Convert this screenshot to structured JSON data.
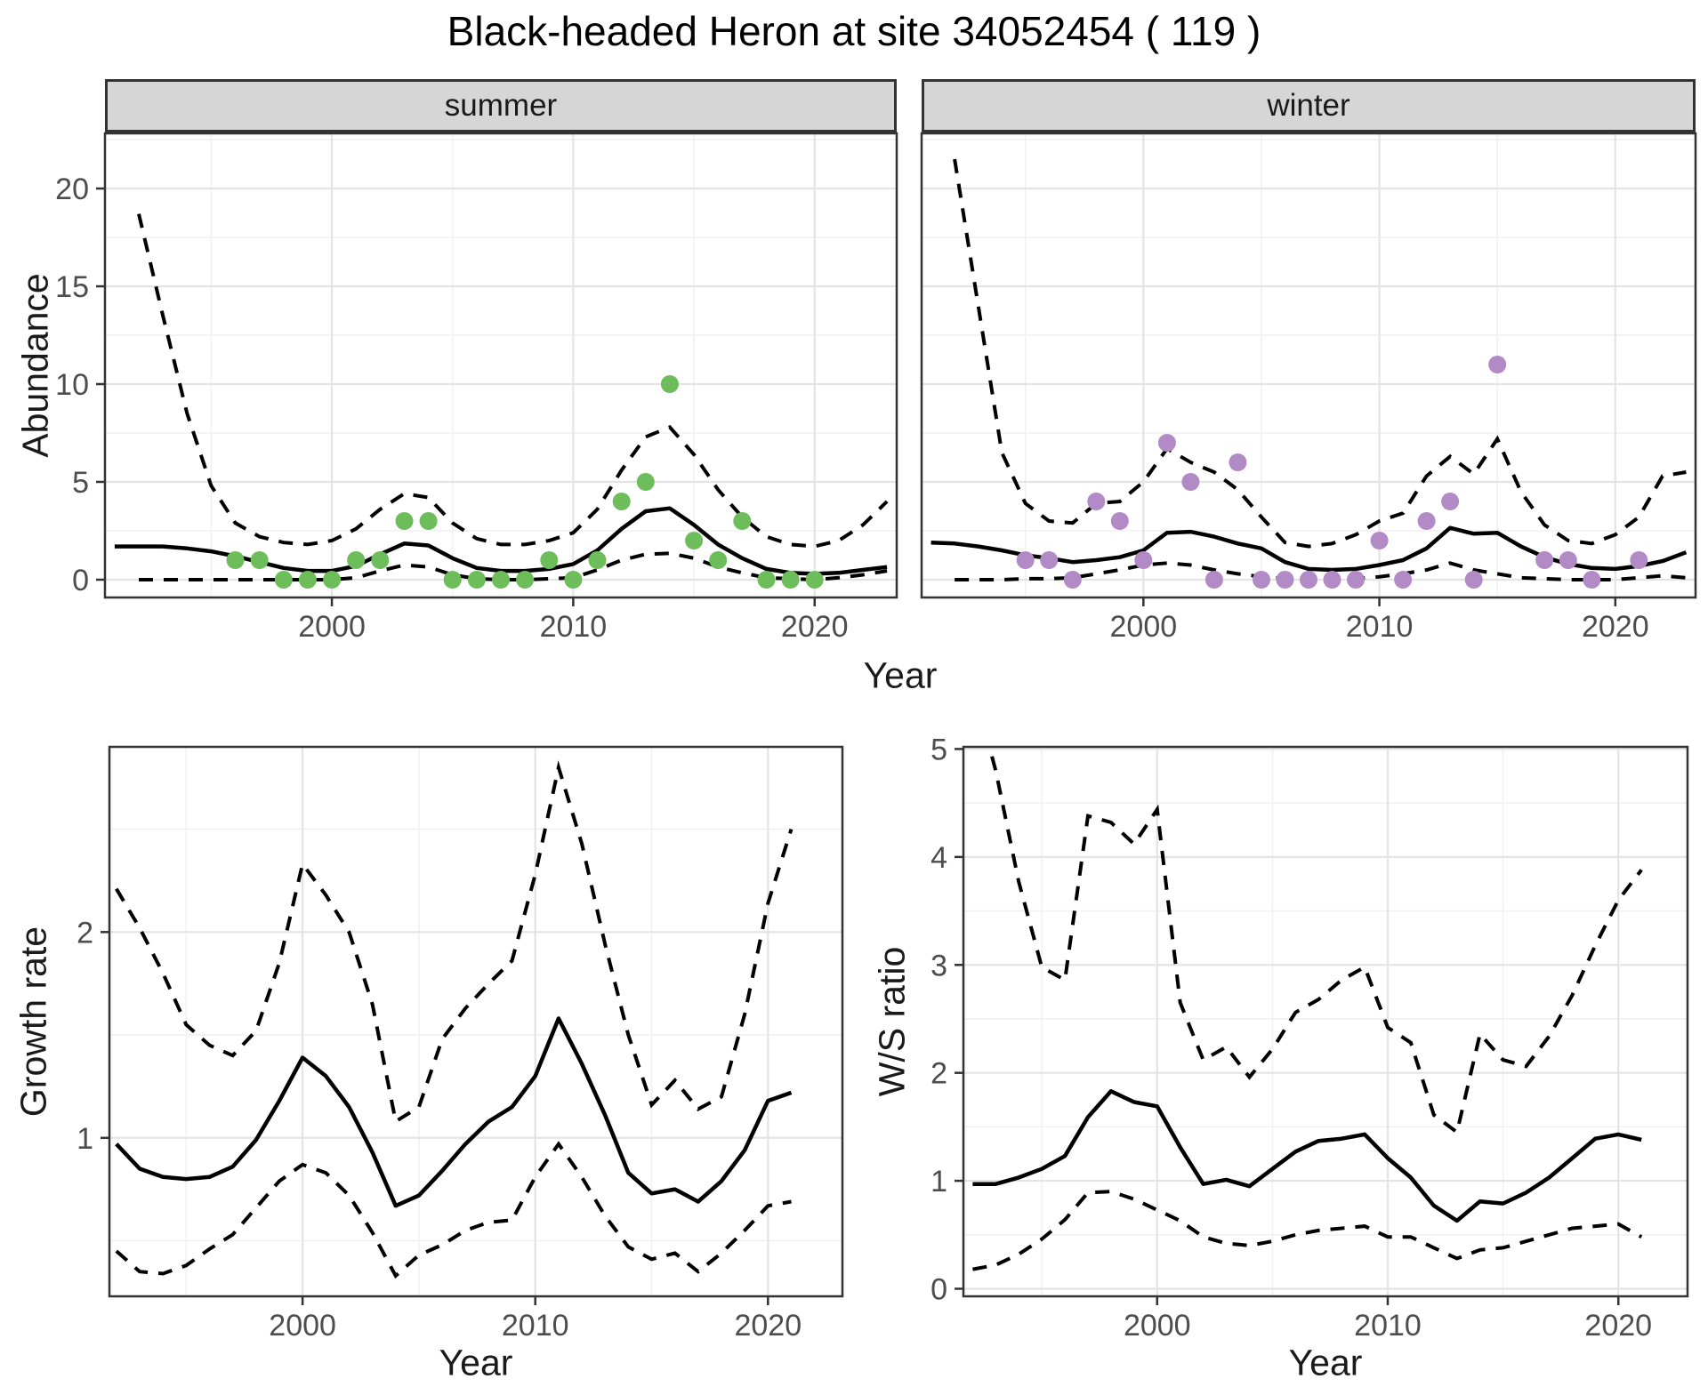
{
  "title": "Black-headed Heron at site 34052454 ( 119 )",
  "facets": {
    "summer": "summer",
    "winter": "winter"
  },
  "axis_labels": {
    "abundance_y": "Abundance",
    "top_x": "Year",
    "growth_y": "Growth rate",
    "growth_x": "Year",
    "ws_y": "W/S ratio",
    "ws_x": "Year"
  },
  "colors": {
    "summer_point": "#6DBE5B",
    "winter_point": "#B28AC6",
    "line": "#000000",
    "grid_major": "#E4E4E4",
    "grid_minor": "#F1F1F1",
    "strip_bg": "#D6D6D6",
    "panel_border": "#333333",
    "tick_label": "#4D4D4D",
    "axis_title": "#1A1A1A"
  },
  "chart_data": [
    {
      "id": "abundance_summer",
      "type": "line",
      "facet": "summer",
      "title": "",
      "xlabel": "Year",
      "ylabel": "Abundance",
      "x_ticks": [
        2000,
        2010,
        2020
      ],
      "x_minor": [
        1995,
        2005,
        2015
      ],
      "y_ticks": [
        0,
        5,
        10,
        15,
        20
      ],
      "y_minor": [
        2.5,
        7.5,
        12.5,
        17.5,
        22.5
      ],
      "xlim": [
        1990.6,
        2023.4
      ],
      "ylim": [
        -0.91,
        22.82
      ],
      "line_years": [
        1991,
        1992,
        1993,
        1994,
        1995,
        1996,
        1997,
        1998,
        1999,
        2000,
        2001,
        2002,
        2003,
        2004,
        2005,
        2006,
        2007,
        2008,
        2009,
        2010,
        2011,
        2012,
        2013,
        2014,
        2015,
        2016,
        2017,
        2018,
        2019,
        2020,
        2021,
        2022,
        2023
      ],
      "mean": [
        1.7,
        1.7,
        1.7,
        1.6,
        1.45,
        1.2,
        0.9,
        0.6,
        0.45,
        0.45,
        0.7,
        1.3,
        1.85,
        1.75,
        1.1,
        0.6,
        0.45,
        0.45,
        0.55,
        0.8,
        1.5,
        2.6,
        3.5,
        3.65,
        2.8,
        1.8,
        1.1,
        0.55,
        0.35,
        0.3,
        0.35,
        0.5,
        0.65
      ],
      "ci_upper": [
        null,
        18.7,
        13.5,
        8.5,
        4.8,
        2.9,
        2.2,
        1.9,
        1.8,
        2.0,
        2.6,
        3.6,
        4.4,
        4.2,
        2.9,
        2.1,
        1.8,
        1.8,
        2.0,
        2.4,
        3.6,
        5.6,
        7.3,
        7.8,
        6.4,
        4.6,
        3.2,
        2.2,
        1.8,
        1.7,
        2.0,
        2.8,
        4.0
      ],
      "ci_lower": [
        null,
        0,
        0,
        0,
        0,
        0,
        0,
        0,
        0,
        0,
        0.1,
        0.45,
        0.75,
        0.65,
        0.25,
        0.05,
        0,
        0,
        0.05,
        0.1,
        0.5,
        1.0,
        1.3,
        1.35,
        1.1,
        0.65,
        0.35,
        0.1,
        0.05,
        0,
        0.1,
        0.25,
        0.45
      ],
      "points_years": [
        1996,
        1997,
        1998,
        1999,
        2000,
        2001,
        2002,
        2003,
        2004,
        2005,
        2006,
        2007,
        2008,
        2009,
        2010,
        2011,
        2012,
        2013,
        2014,
        2015,
        2016,
        2017,
        2018,
        2019,
        2020
      ],
      "points_values": [
        1,
        1,
        0,
        0,
        0,
        1,
        1,
        3,
        3,
        0,
        0,
        0,
        0,
        1,
        0,
        1,
        4,
        5,
        10,
        2,
        1,
        3,
        0,
        0,
        0
      ]
    },
    {
      "id": "abundance_winter",
      "type": "line",
      "facet": "winter",
      "title": "",
      "xlabel": "Year",
      "ylabel": "Abundance",
      "x_ticks": [
        2000,
        2010,
        2020
      ],
      "x_minor": [
        1995,
        2005,
        2015
      ],
      "y_ticks": [
        0,
        5,
        10,
        15,
        20
      ],
      "y_minor": [
        2.5,
        7.5,
        12.5,
        17.5,
        22.5
      ],
      "xlim": [
        1990.6,
        2023.4
      ],
      "ylim": [
        -0.91,
        22.82
      ],
      "line_years": [
        1991,
        1992,
        1993,
        1994,
        1995,
        1996,
        1997,
        1998,
        1999,
        2000,
        2001,
        2002,
        2003,
        2004,
        2005,
        2006,
        2007,
        2008,
        2009,
        2010,
        2011,
        2012,
        2013,
        2014,
        2015,
        2016,
        2017,
        2018,
        2019,
        2020,
        2021,
        2022,
        2023
      ],
      "mean": [
        1.9,
        1.85,
        1.7,
        1.5,
        1.25,
        1.1,
        0.9,
        1.0,
        1.15,
        1.5,
        2.4,
        2.45,
        2.2,
        1.85,
        1.6,
        0.9,
        0.55,
        0.5,
        0.55,
        0.75,
        1.0,
        1.6,
        2.65,
        2.35,
        2.4,
        1.7,
        1.15,
        0.8,
        0.6,
        0.55,
        0.7,
        0.95,
        1.4
      ],
      "ci_upper": [
        null,
        21.5,
        14.0,
        6.5,
        3.9,
        3.0,
        2.9,
        3.9,
        4.0,
        5.0,
        6.7,
        6.0,
        5.5,
        4.6,
        3.2,
        1.9,
        1.7,
        1.85,
        2.3,
        3.0,
        3.4,
        5.3,
        6.3,
        5.4,
        7.2,
        4.5,
        2.8,
        2.0,
        1.85,
        2.3,
        3.2,
        5.3,
        5.5
      ],
      "ci_lower": [
        null,
        0,
        0,
        0,
        0.05,
        0.05,
        0.1,
        0.3,
        0.5,
        0.75,
        0.85,
        0.75,
        0.5,
        0.3,
        0.15,
        0.05,
        0,
        0,
        0.05,
        0.15,
        0.3,
        0.5,
        0.85,
        0.5,
        0.3,
        0.1,
        0.05,
        0,
        0,
        0,
        0.1,
        0.2,
        0.1
      ],
      "points_years": [
        1995,
        1996,
        1997,
        1998,
        1999,
        2000,
        2001,
        2002,
        2003,
        2004,
        2005,
        2006,
        2007,
        2008,
        2009,
        2010,
        2011,
        2012,
        2013,
        2014,
        2015,
        2017,
        2018,
        2019,
        2021
      ],
      "points_values": [
        1,
        1,
        0,
        4,
        3,
        1,
        7,
        5,
        0,
        6,
        0,
        0,
        0,
        0,
        0,
        2,
        0,
        3,
        4,
        0,
        11,
        1,
        1,
        0,
        1
      ]
    },
    {
      "id": "growth_rate",
      "type": "line",
      "facet": "",
      "title": "",
      "xlabel": "Year",
      "ylabel": "Growth rate",
      "x_ticks": [
        2000,
        2010,
        2020
      ],
      "x_minor": [
        1995,
        2005,
        2015
      ],
      "y_ticks": [
        1,
        2
      ],
      "y_minor": [
        0.5,
        1.5,
        2.5
      ],
      "xlim": [
        1991.7,
        2023.2
      ],
      "ylim": [
        0.23,
        2.9
      ],
      "line_years": [
        1992,
        1993,
        1994,
        1995,
        1996,
        1997,
        1998,
        1999,
        2000,
        2001,
        2002,
        2003,
        2004,
        2005,
        2006,
        2007,
        2008,
        2009,
        2010,
        2011,
        2012,
        2013,
        2014,
        2015,
        2016,
        2017,
        2018,
        2019,
        2020,
        2021
      ],
      "mean": [
        0.97,
        0.85,
        0.81,
        0.8,
        0.81,
        0.86,
        0.99,
        1.18,
        1.39,
        1.3,
        1.15,
        0.93,
        0.67,
        0.72,
        0.84,
        0.97,
        1.08,
        1.15,
        1.3,
        1.58,
        1.36,
        1.11,
        0.83,
        0.73,
        0.75,
        0.69,
        0.79,
        0.94,
        1.18,
        1.22
      ],
      "ci_upper": [
        2.21,
        2.02,
        1.8,
        1.55,
        1.45,
        1.4,
        1.52,
        1.85,
        2.33,
        2.18,
        2.0,
        1.65,
        1.08,
        1.15,
        1.48,
        1.63,
        1.75,
        1.86,
        2.28,
        2.8,
        2.43,
        1.94,
        1.5,
        1.16,
        1.28,
        1.14,
        1.2,
        1.6,
        2.14,
        2.5
      ],
      "ci_lower": [
        0.45,
        0.35,
        0.34,
        0.38,
        0.46,
        0.53,
        0.66,
        0.79,
        0.87,
        0.83,
        0.72,
        0.54,
        0.33,
        0.43,
        0.48,
        0.55,
        0.59,
        0.6,
        0.81,
        0.97,
        0.81,
        0.62,
        0.47,
        0.41,
        0.44,
        0.35,
        0.44,
        0.55,
        0.67,
        0.69
      ]
    },
    {
      "id": "ws_ratio",
      "type": "line",
      "facet": "",
      "title": "",
      "xlabel": "Year",
      "ylabel": "W/S ratio",
      "x_ticks": [
        2000,
        2010,
        2020
      ],
      "x_minor": [
        1995,
        2005,
        2015
      ],
      "y_ticks": [
        0,
        1,
        2,
        3,
        4,
        5
      ],
      "y_minor": [
        0.5,
        1.5,
        2.5,
        3.5,
        4.5
      ],
      "xlim": [
        1991.6,
        2023.0
      ],
      "ylim": [
        -0.07,
        5.02
      ],
      "line_years": [
        1992,
        1993,
        1994,
        1995,
        1996,
        1997,
        1998,
        1999,
        2000,
        2001,
        2002,
        2003,
        2004,
        2005,
        2006,
        2007,
        2008,
        2009,
        2010,
        2011,
        2012,
        2013,
        2014,
        2015,
        2016,
        2017,
        2018,
        2019,
        2020,
        2021
      ],
      "mean": [
        0.97,
        0.97,
        1.03,
        1.11,
        1.23,
        1.59,
        1.83,
        1.73,
        1.69,
        1.31,
        0.97,
        1.01,
        0.95,
        1.11,
        1.27,
        1.37,
        1.39,
        1.43,
        1.21,
        1.03,
        0.77,
        0.63,
        0.81,
        0.79,
        0.89,
        1.03,
        1.21,
        1.39,
        1.43,
        1.38
      ],
      "ci_upper": [
        5.6,
        4.8,
        3.77,
        2.98,
        2.86,
        4.38,
        4.32,
        4.12,
        4.44,
        2.65,
        2.12,
        2.24,
        1.96,
        2.22,
        2.56,
        2.68,
        2.86,
        2.98,
        2.42,
        2.28,
        1.61,
        1.45,
        2.36,
        2.12,
        2.06,
        2.34,
        2.72,
        3.18,
        3.6,
        3.88
      ],
      "ci_lower": [
        0.18,
        0.22,
        0.32,
        0.46,
        0.64,
        0.89,
        0.9,
        0.83,
        0.73,
        0.63,
        0.48,
        0.42,
        0.4,
        0.44,
        0.5,
        0.54,
        0.56,
        0.58,
        0.48,
        0.48,
        0.38,
        0.28,
        0.36,
        0.38,
        0.44,
        0.5,
        0.56,
        0.58,
        0.6,
        0.48
      ]
    }
  ]
}
